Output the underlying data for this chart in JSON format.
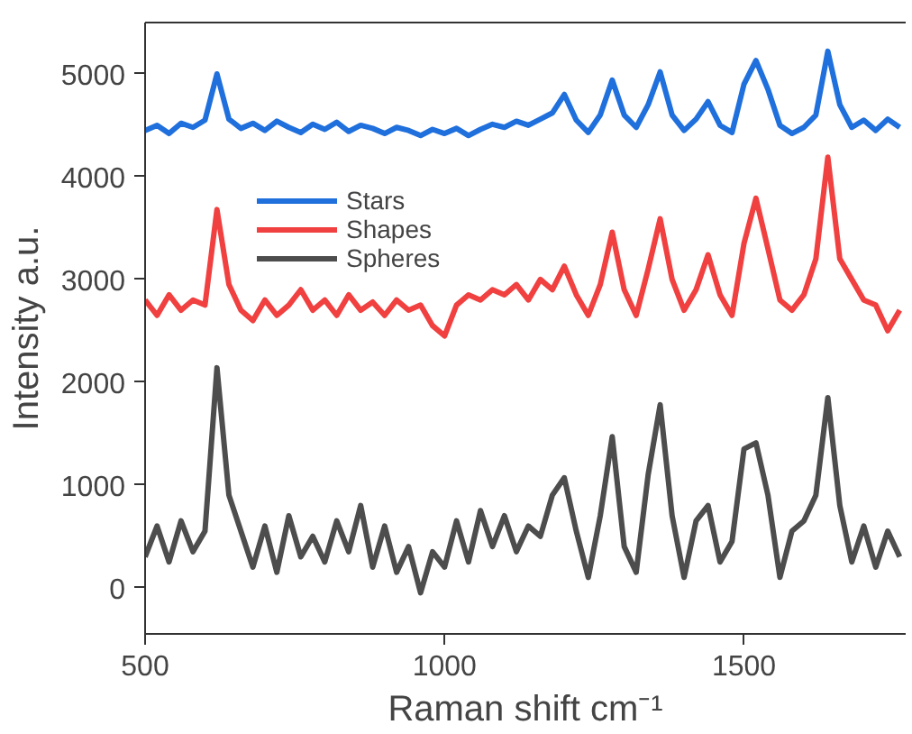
{
  "chart_data": {
    "type": "line",
    "xlabel": "Raman shift cm⁻¹",
    "ylabel": "Intensity a.u.",
    "x": [
      500,
      520,
      540,
      560,
      580,
      600,
      620,
      640,
      660,
      680,
      700,
      720,
      740,
      760,
      780,
      800,
      820,
      840,
      860,
      880,
      900,
      920,
      940,
      960,
      980,
      1000,
      1020,
      1040,
      1060,
      1080,
      1100,
      1120,
      1140,
      1160,
      1180,
      1200,
      1220,
      1240,
      1260,
      1280,
      1300,
      1320,
      1340,
      1360,
      1380,
      1400,
      1420,
      1440,
      1460,
      1480,
      1500,
      1520,
      1540,
      1560,
      1580,
      1600,
      1620,
      1640,
      1660,
      1680,
      1700,
      1720,
      1740,
      1760
    ],
    "series": [
      {
        "name": "Stars",
        "color": "#1f6fdc",
        "values": [
          4450,
          4500,
          4420,
          4520,
          4480,
          4550,
          5000,
          4560,
          4470,
          4520,
          4450,
          4540,
          4480,
          4430,
          4510,
          4460,
          4530,
          4440,
          4500,
          4470,
          4420,
          4480,
          4450,
          4400,
          4460,
          4420,
          4470,
          4400,
          4460,
          4510,
          4480,
          4540,
          4500,
          4560,
          4620,
          4800,
          4550,
          4430,
          4600,
          4940,
          4600,
          4480,
          4700,
          5020,
          4600,
          4450,
          4560,
          4730,
          4500,
          4430,
          4900,
          5130,
          4850,
          4500,
          4420,
          4480,
          4600,
          5220,
          4700,
          4480,
          4550,
          4450,
          4560,
          4480
        ]
      },
      {
        "name": "Shapes",
        "color": "#f04040",
        "values": [
          2800,
          2650,
          2850,
          2700,
          2800,
          2750,
          3680,
          2950,
          2700,
          2600,
          2800,
          2650,
          2750,
          2900,
          2700,
          2800,
          2650,
          2850,
          2700,
          2780,
          2650,
          2800,
          2700,
          2750,
          2550,
          2450,
          2750,
          2850,
          2800,
          2900,
          2850,
          2950,
          2800,
          3000,
          2900,
          3130,
          2850,
          2650,
          2950,
          3460,
          2900,
          2650,
          3100,
          3590,
          3000,
          2700,
          2900,
          3240,
          2850,
          2650,
          3350,
          3790,
          3300,
          2800,
          2700,
          2850,
          3200,
          4190,
          3200,
          3000,
          2800,
          2750,
          2500,
          2700
        ]
      },
      {
        "name": "Spheres",
        "color": "#4d4d4d",
        "values": [
          300,
          600,
          250,
          650,
          350,
          550,
          2140,
          900,
          550,
          200,
          600,
          150,
          700,
          300,
          500,
          250,
          650,
          350,
          800,
          200,
          600,
          150,
          400,
          -50,
          350,
          200,
          650,
          250,
          750,
          400,
          700,
          350,
          600,
          500,
          900,
          1070,
          550,
          100,
          700,
          1470,
          400,
          150,
          1100,
          1780,
          700,
          100,
          650,
          800,
          250,
          450,
          1350,
          1410,
          900,
          100,
          550,
          650,
          900,
          1850,
          800,
          250,
          600,
          200,
          550,
          300
        ]
      }
    ],
    "xlim": [
      500,
      1770
    ],
    "xticks": [
      500,
      1000,
      1500
    ],
    "ylim": [
      -450,
      5500
    ],
    "yticks": [
      0,
      1000,
      2000,
      3000,
      4000,
      5000
    ],
    "grid": false,
    "legend": "top left",
    "line_style": "solid",
    "marker": "none"
  }
}
